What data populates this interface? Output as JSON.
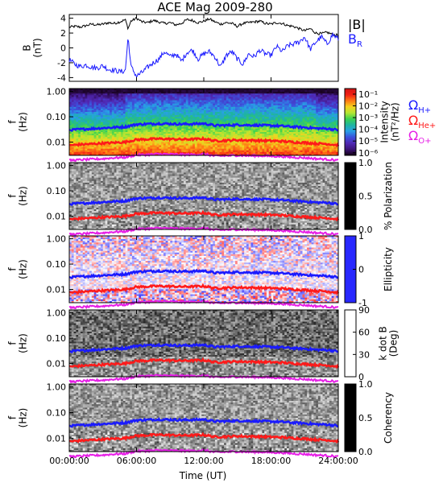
{
  "chart_data": {
    "type": "line",
    "title": "ACE Mag 2009-280",
    "xlabel": "Time (UT)",
    "xlim": [
      0,
      24
    ],
    "xticks": [
      0,
      6,
      12,
      18,
      24
    ],
    "xtick_labels": [
      "00:00:00",
      "06:00:00",
      "12:00:00",
      "18:00:00",
      "24:00:00"
    ],
    "panels": [
      {
        "id": "b-field",
        "ylabel": [
          "B",
          "(nT)"
        ],
        "ylim": [
          -4.5,
          4.5
        ],
        "yticks": [
          -4,
          -2,
          0,
          2,
          4
        ],
        "ytick_labels": [
          "-4",
          "-2",
          "0",
          "2",
          "4"
        ],
        "legend": [
          {
            "text": "|B|",
            "color": "#000000"
          },
          {
            "text": "B",
            "sub": "R",
            "color": "#1a1aff"
          }
        ],
        "series": [
          {
            "name": "|B|",
            "color": "#000000",
            "x": [
              0,
              0.5,
              1,
              1.5,
              2,
              2.5,
              3,
              3.5,
              4,
              4.5,
              5,
              5.25,
              5.5,
              6,
              6.5,
              7,
              7.5,
              8,
              8.5,
              9,
              9.5,
              10,
              10.5,
              11,
              11.5,
              12,
              12.5,
              13,
              13.5,
              14,
              14.5,
              15,
              15.5,
              16,
              16.5,
              17,
              17.5,
              18,
              18.5,
              19,
              19.5,
              20,
              20.5,
              21,
              21.5,
              22,
              22.5,
              23,
              23.5,
              24
            ],
            "y": [
              2.8,
              2.9,
              2.8,
              3.0,
              3.2,
              3.1,
              3.2,
              3.4,
              3.3,
              3.5,
              3.8,
              2.6,
              3.6,
              4.0,
              3.5,
              3.4,
              3.7,
              3.5,
              3.3,
              3.4,
              3.1,
              3.3,
              3.8,
              3.7,
              3.4,
              3.6,
              3.9,
              3.5,
              3.2,
              3.4,
              3.3,
              2.9,
              3.3,
              3.4,
              3.5,
              3.6,
              3.3,
              3.2,
              3.4,
              3.3,
              3.0,
              2.9,
              2.6,
              2.3,
              2.6,
              2.0,
              1.9,
              2.1,
              1.8,
              1.7
            ]
          },
          {
            "name": "B_R",
            "color": "#1a1aff",
            "x": [
              0,
              0.5,
              1,
              1.5,
              2,
              2.5,
              3,
              3.5,
              4,
              4.5,
              5,
              5.25,
              5.5,
              6,
              6.5,
              7,
              7.5,
              8,
              8.5,
              9,
              9.5,
              10,
              10.5,
              11,
              11.5,
              12,
              12.5,
              13,
              13.5,
              14,
              14.5,
              15,
              15.5,
              16,
              16.5,
              17,
              17.5,
              18,
              18.5,
              19,
              19.5,
              20,
              20.5,
              21,
              21.5,
              22,
              22.5,
              23,
              23.5,
              24
            ],
            "y": [
              -1.6,
              -2.2,
              -2.5,
              -2.3,
              -2.6,
              -2.7,
              -2.4,
              -2.9,
              -3.0,
              -3.2,
              -3.1,
              1.5,
              -2.5,
              -3.8,
              -3.3,
              -2.6,
              -2.0,
              -1.5,
              -0.5,
              -1.2,
              -0.8,
              -1.8,
              -0.6,
              -0.3,
              -1.5,
              -0.8,
              -0.5,
              -1.2,
              -2.6,
              -1.0,
              -0.5,
              -1.5,
              -2.2,
              -0.8,
              -1.2,
              -0.3,
              -0.8,
              -1.0,
              0.2,
              -0.5,
              0.3,
              0.5,
              0.8,
              1.5,
              -0.2,
              0.8,
              1.5,
              0.5,
              1.8,
              1.2
            ]
          }
        ]
      },
      {
        "id": "intensity",
        "type": "heatmap",
        "ylabel": [
          "f",
          "(Hz)"
        ],
        "yscale": "log",
        "ylim": [
          0.003,
          1.3
        ],
        "yticks": [
          0.01,
          0.1,
          1.0
        ],
        "ytick_labels": [
          "0.01",
          "0.10",
          "1.00"
        ],
        "colorbar": {
          "label": [
            "Intensity",
            "(nT²/Hz)"
          ],
          "scale": "log",
          "ticks": [
            0.1,
            0.01,
            0.001,
            0.0001,
            1e-05,
            1e-06
          ],
          "tick_labels": [
            "10⁻¹",
            "10⁻²",
            "10⁻³",
            "10⁻⁴",
            "10⁻⁵",
            "10⁻⁶"
          ],
          "colors": [
            "#d21414",
            "#f01e14",
            "#ff7814",
            "#f5d21e",
            "#b4e632",
            "#3cd250",
            "#1eb4a0",
            "#28a0e6",
            "#3c50dc",
            "#5028b4",
            "#3c1478",
            "#140014"
          ]
        },
        "legend": [
          {
            "text": "Ω",
            "sub": "H+",
            "color": "#1a1aff"
          },
          {
            "text": "Ω",
            "sub": "He+",
            "color": "#ff1a1a"
          },
          {
            "text": "Ω",
            "sub": "O+",
            "color": "#e61ee6"
          }
        ]
      },
      {
        "id": "polarization",
        "type": "heatmap",
        "ylabel": [
          "f",
          "(Hz)"
        ],
        "yscale": "log",
        "ylim": [
          0.003,
          1.3
        ],
        "yticks": [
          0.01,
          0.1,
          1.0
        ],
        "ytick_labels": [
          "0.01",
          "0.10",
          "1.00"
        ],
        "colorbar": {
          "label": [
            "% Polarization"
          ],
          "range": [
            0,
            1
          ],
          "ticks": [
            0,
            0.5,
            1
          ],
          "tick_labels": [
            "0.0",
            "0.5",
            "1.0"
          ],
          "colors": [
            "#000000",
            "#ffffff"
          ]
        }
      },
      {
        "id": "ellipticity",
        "type": "heatmap",
        "ylabel": [
          "f",
          "(Hz)"
        ],
        "yscale": "log",
        "ylim": [
          0.003,
          1.3
        ],
        "yticks": [
          0.01,
          0.1,
          1.0
        ],
        "ytick_labels": [
          "0.01",
          "0.10",
          "1.00"
        ],
        "colorbar": {
          "label": [
            "Ellipticity"
          ],
          "range": [
            -1,
            1
          ],
          "ticks": [
            -1,
            0,
            1
          ],
          "tick_labels": [
            "-1",
            "0",
            "1"
          ],
          "colors": [
            "#2828ff",
            "#ffffff",
            "#ff2828"
          ]
        }
      },
      {
        "id": "kdotb",
        "type": "heatmap",
        "ylabel": [
          "f",
          "(Hz)"
        ],
        "yscale": "log",
        "ylim": [
          0.003,
          1.3
        ],
        "yticks": [
          0.01,
          0.1,
          1.0
        ],
        "ytick_labels": [
          "0.01",
          "0.10",
          "1.00"
        ],
        "colorbar": {
          "label": [
            "k dot B",
            "(Deg)"
          ],
          "range": [
            0,
            90
          ],
          "ticks": [
            0,
            30,
            60,
            90
          ],
          "tick_labels": [
            "0",
            "30",
            "60",
            "90"
          ],
          "colors": [
            "#ffffff",
            "#000000"
          ]
        }
      },
      {
        "id": "coherency",
        "type": "heatmap",
        "ylabel": [
          "f",
          "(Hz)"
        ],
        "yscale": "log",
        "ylim": [
          0.003,
          1.3
        ],
        "yticks": [
          0.01,
          0.1,
          1.0
        ],
        "ytick_labels": [
          "0.01",
          "0.10",
          "1.00"
        ],
        "colorbar": {
          "label": [
            "Coherency"
          ],
          "range": [
            0,
            1
          ],
          "ticks": [
            0,
            0.5,
            1
          ],
          "tick_labels": [
            "0.0",
            "0.5",
            "1.0"
          ],
          "colors": [
            "#000000",
            "#ffffff"
          ]
        }
      }
    ],
    "gyrofrequency_lines": [
      {
        "name": "H+",
        "color": "#1a1aff",
        "x": [
          0,
          1,
          2,
          3,
          4,
          5,
          6,
          7,
          8,
          9,
          10,
          11,
          12,
          13,
          14,
          15,
          16,
          17,
          18,
          19,
          20,
          21,
          22,
          23,
          24
        ],
        "y": [
          0.03,
          0.032,
          0.034,
          0.036,
          0.038,
          0.04,
          0.05,
          0.052,
          0.054,
          0.053,
          0.051,
          0.052,
          0.054,
          0.045,
          0.046,
          0.048,
          0.047,
          0.046,
          0.045,
          0.043,
          0.04,
          0.038,
          0.035,
          0.034,
          0.03
        ]
      },
      {
        "name": "He+",
        "color": "#ff1a1a",
        "x": [
          0,
          1,
          2,
          3,
          4,
          5,
          6,
          7,
          8,
          9,
          10,
          11,
          12,
          13,
          14,
          15,
          16,
          17,
          18,
          19,
          20,
          21,
          22,
          23,
          24
        ],
        "y": [
          0.0075,
          0.008,
          0.0085,
          0.009,
          0.0095,
          0.01,
          0.0125,
          0.013,
          0.0135,
          0.0132,
          0.0128,
          0.013,
          0.0135,
          0.0112,
          0.0115,
          0.012,
          0.0118,
          0.0115,
          0.0112,
          0.0108,
          0.01,
          0.0095,
          0.0088,
          0.0085,
          0.0075
        ]
      },
      {
        "name": "O+",
        "color": "#e61ee6",
        "x": [
          0,
          1,
          2,
          3,
          4,
          5,
          6,
          7,
          8,
          9,
          10,
          11,
          12,
          13,
          14,
          15,
          16,
          17,
          18,
          19,
          20,
          21,
          22,
          23,
          24
        ],
        "y": [
          0.0019,
          0.002,
          0.0021,
          0.0022,
          0.0024,
          0.0025,
          0.0031,
          0.0032,
          0.0034,
          0.0033,
          0.0032,
          0.0032,
          0.0034,
          0.0028,
          0.0029,
          0.003,
          0.0029,
          0.0029,
          0.0028,
          0.0027,
          0.0025,
          0.0024,
          0.0022,
          0.0021,
          0.0019
        ]
      }
    ]
  }
}
